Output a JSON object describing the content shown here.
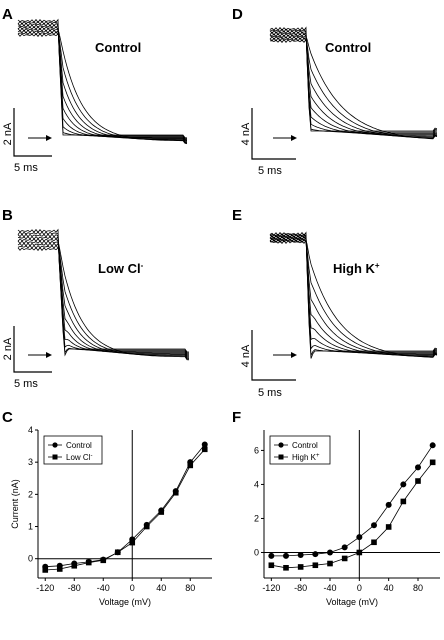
{
  "panels": {
    "A": {
      "label": "A",
      "condition": "Control",
      "scale_y": "2 nA",
      "scale_x": "5 ms"
    },
    "B": {
      "label": "B",
      "condition_main": "Low Cl",
      "condition_sup": "-",
      "scale_y": "2 nA",
      "scale_x": "5 ms"
    },
    "D": {
      "label": "D",
      "condition": "Control",
      "scale_y": "4 nA",
      "scale_x": "5 ms"
    },
    "E": {
      "label": "E",
      "condition_main": "High K",
      "condition_sup": "+",
      "scale_y": "4 nA",
      "scale_x": "5 ms"
    },
    "C": {
      "label": "C"
    },
    "F": {
      "label": "F"
    }
  },
  "chart_data": [
    {
      "panel": "C",
      "type": "line",
      "xlabel": "Voltage (mV)",
      "ylabel": "Current (nA)",
      "xlim": [
        -130,
        110
      ],
      "ylim": [
        -0.6,
        4
      ],
      "xticks": [
        "-120",
        "-80",
        "-40",
        "0",
        "40",
        "80"
      ],
      "yticks": [
        "0",
        "1",
        "2",
        "3",
        "4"
      ],
      "legend_position": "top-left",
      "x": [
        -120,
        -100,
        -80,
        -60,
        -40,
        -20,
        0,
        20,
        40,
        60,
        80,
        100
      ],
      "series": [
        {
          "name": "Control",
          "marker": "circle",
          "values": [
            -0.25,
            -0.22,
            -0.15,
            -0.1,
            -0.03,
            0.2,
            0.6,
            1.05,
            1.5,
            2.1,
            3.0,
            3.55
          ]
        },
        {
          "name_main": "Low Cl",
          "name_sup": "-",
          "marker": "square",
          "values": [
            -0.35,
            -0.32,
            -0.22,
            -0.12,
            -0.05,
            0.2,
            0.5,
            1.0,
            1.45,
            2.05,
            2.9,
            3.4
          ]
        }
      ]
    },
    {
      "panel": "F",
      "type": "line",
      "xlabel": "Voltage (mV)",
      "ylabel": "",
      "xlim": [
        -130,
        110
      ],
      "ylim": [
        -1.5,
        7.2
      ],
      "xticks": [
        "-120",
        "-80",
        "-40",
        "0",
        "40",
        "80"
      ],
      "yticks": [
        "0",
        "2",
        "4",
        "6"
      ],
      "legend_position": "top-left",
      "x": [
        -120,
        -100,
        -80,
        -60,
        -40,
        -20,
        0,
        20,
        40,
        60,
        80,
        100
      ],
      "series": [
        {
          "name": "Control",
          "marker": "circle",
          "values": [
            -0.2,
            -0.2,
            -0.15,
            -0.1,
            0.0,
            0.3,
            0.9,
            1.6,
            2.8,
            4.0,
            5.0,
            6.3
          ]
        },
        {
          "name_main": "High K",
          "name_sup": "+",
          "marker": "square",
          "values": [
            -0.75,
            -0.9,
            -0.85,
            -0.75,
            -0.65,
            -0.35,
            0.0,
            0.6,
            1.5,
            3.0,
            4.2,
            5.3
          ]
        }
      ]
    }
  ]
}
